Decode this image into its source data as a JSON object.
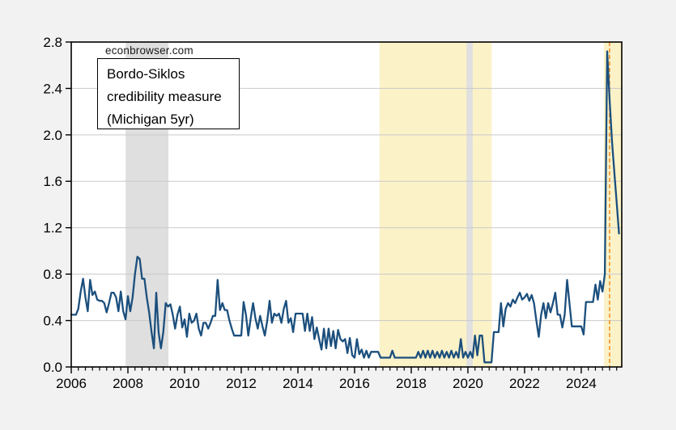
{
  "watermark": {
    "text": "econbrowser.com"
  },
  "annotation": {
    "lines": [
      "Bordo-Siklos",
      "credibility measure",
      "(Michigan 5yr)"
    ]
  },
  "chart_data": {
    "type": "line",
    "title": "Bordo-Siklos credibility measure (Michigan 5yr)",
    "xlabel": "",
    "ylabel": "",
    "grid": true,
    "xlim": [
      2006,
      2025.43
    ],
    "ylim": [
      0,
      2.8
    ],
    "x_major_ticks": [
      2006,
      2008,
      2010,
      2012,
      2014,
      2016,
      2018,
      2020,
      2022,
      2024
    ],
    "x_tick_labels": [
      "2006",
      "2008",
      "2010",
      "2012",
      "2014",
      "2016",
      "2018",
      "2020",
      "2022",
      "2024"
    ],
    "x_minor_tick_step": 0.25,
    "y_ticks": [
      0,
      0.4,
      0.8,
      1.2,
      1.6,
      2.0,
      2.4,
      2.8
    ],
    "y_tick_labels": [
      "0.0",
      "0.4",
      "0.8",
      "1.2",
      "1.6",
      "2.0",
      "2.4",
      "2.8"
    ],
    "bands": [
      {
        "kind": "highlight",
        "from": 2016.88,
        "to": 2020.84,
        "color": "#fbf2c8"
      },
      {
        "kind": "recession",
        "from": 2007.92,
        "to": 2009.43,
        "color": "#dfdfdf"
      },
      {
        "kind": "recession",
        "from": 2019.95,
        "to": 2020.17,
        "color": "#e0e0e0"
      },
      {
        "kind": "highlight",
        "from": 2024.8,
        "to": 2025.43,
        "color": "#fbf2c8"
      }
    ],
    "vline": {
      "x": 2025.0,
      "color": "#f08c21",
      "style": "dashed"
    },
    "colors": {
      "line": "#1b4f7d",
      "grid": "#c9c9c9",
      "axis": "#000000",
      "plot_bg": "#ffffff",
      "outer_bg": "#f2f2f2"
    },
    "x_start_year": 2006,
    "x_step_months": 1,
    "series": [
      {
        "name": "Bordo-Siklos credibility measure (Michigan 5yr)",
        "color": "#1b4f7d",
        "values": [
          0.45,
          0.45,
          0.45,
          0.5,
          0.65,
          0.76,
          0.6,
          0.48,
          0.75,
          0.62,
          0.65,
          0.58,
          0.57,
          0.57,
          0.55,
          0.47,
          0.55,
          0.64,
          0.64,
          0.6,
          0.48,
          0.65,
          0.48,
          0.41,
          0.61,
          0.48,
          0.6,
          0.8,
          0.95,
          0.93,
          0.76,
          0.76,
          0.6,
          0.47,
          0.3,
          0.16,
          0.64,
          0.3,
          0.16,
          0.3,
          0.55,
          0.52,
          0.54,
          0.45,
          0.33,
          0.45,
          0.52,
          0.34,
          0.41,
          0.26,
          0.46,
          0.38,
          0.4,
          0.46,
          0.33,
          0.27,
          0.38,
          0.38,
          0.33,
          0.38,
          0.44,
          0.44,
          0.75,
          0.49,
          0.55,
          0.49,
          0.49,
          0.4,
          0.33,
          0.27,
          0.27,
          0.27,
          0.27,
          0.56,
          0.45,
          0.27,
          0.42,
          0.55,
          0.42,
          0.33,
          0.44,
          0.35,
          0.27,
          0.4,
          0.57,
          0.38,
          0.46,
          0.44,
          0.46,
          0.38,
          0.5,
          0.57,
          0.38,
          0.42,
          0.3,
          0.46,
          0.46,
          0.46,
          0.46,
          0.31,
          0.46,
          0.31,
          0.43,
          0.24,
          0.34,
          0.24,
          0.15,
          0.33,
          0.16,
          0.33,
          0.18,
          0.31,
          0.16,
          0.32,
          0.24,
          0.22,
          0.24,
          0.12,
          0.25,
          0.1,
          0.08,
          0.24,
          0.11,
          0.15,
          0.08,
          0.14,
          0.08,
          0.13,
          0.13,
          0.13,
          0.13,
          0.08,
          0.08,
          0.08,
          0.08,
          0.08,
          0.14,
          0.08,
          0.08,
          0.08,
          0.08,
          0.08,
          0.08,
          0.08,
          0.08,
          0.08,
          0.08,
          0.13,
          0.08,
          0.14,
          0.08,
          0.14,
          0.08,
          0.14,
          0.08,
          0.13,
          0.08,
          0.14,
          0.08,
          0.13,
          0.08,
          0.14,
          0.08,
          0.13,
          0.08,
          0.24,
          0.08,
          0.13,
          0.08,
          0.13,
          0.08,
          0.27,
          0.1,
          0.27,
          0.27,
          0.04,
          0.04,
          0.04,
          0.04,
          0.3,
          0.3,
          0.3,
          0.55,
          0.35,
          0.5,
          0.55,
          0.52,
          0.58,
          0.55,
          0.6,
          0.64,
          0.58,
          0.6,
          0.63,
          0.57,
          0.62,
          0.55,
          0.4,
          0.26,
          0.45,
          0.55,
          0.42,
          0.55,
          0.47,
          0.55,
          0.64,
          0.45,
          0.45,
          0.34,
          0.45,
          0.75,
          0.55,
          0.35,
          0.35,
          0.35,
          0.35,
          0.35,
          0.28,
          0.56,
          0.56,
          0.56,
          0.56,
          0.71,
          0.58,
          0.74,
          0.65,
          0.8,
          2.72,
          2.3,
          1.95,
          1.68,
          1.42,
          1.15
        ]
      }
    ]
  }
}
